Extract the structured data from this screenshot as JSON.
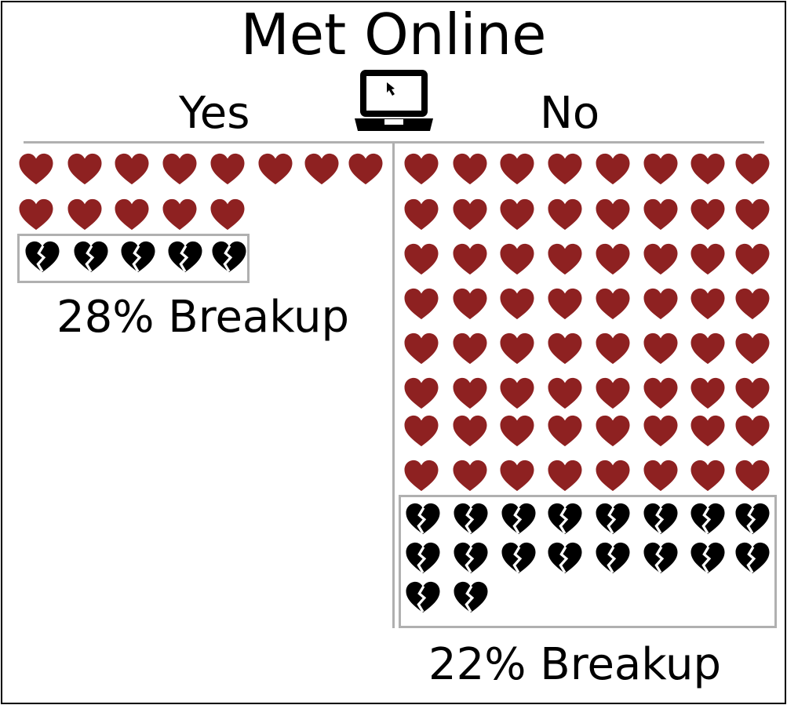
{
  "title": "Met Online",
  "columns": {
    "yes": {
      "label": "Yes",
      "breakup_label": "28% Breakup"
    },
    "no": {
      "label": "No",
      "breakup_label": "22% Breakup"
    }
  },
  "icons": {
    "header": "laptop-cursor-icon",
    "together": "heart-icon",
    "breakup": "broken-heart-icon"
  },
  "colors": {
    "heart": "#8e2121",
    "broken_heart": "#000000",
    "divider": "#b0b0b0"
  },
  "chart_data": {
    "type": "pictograph",
    "title": "Met Online",
    "groups": [
      {
        "name": "Yes",
        "together_icons": 13,
        "breakup_icons": 5,
        "breakup_percent": 28
      },
      {
        "name": "No",
        "together_icons": 64,
        "breakup_icons": 18,
        "breakup_percent": 22
      }
    ]
  }
}
